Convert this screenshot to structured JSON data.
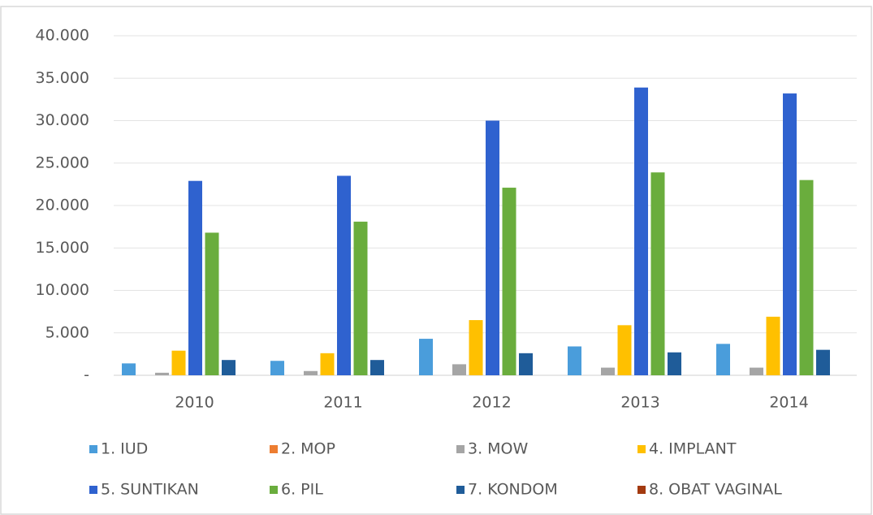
{
  "chart_data": {
    "type": "bar",
    "categories": [
      "2010",
      "2011",
      "2012",
      "2013",
      "2014"
    ],
    "series": [
      {
        "name": "1. IUD",
        "color": "#4a9ddb",
        "values": [
          1400,
          1700,
          4300,
          3400,
          3700
        ]
      },
      {
        "name": "2. MOP",
        "color": "#ed7d31",
        "values": [
          0,
          0,
          0,
          0,
          0
        ]
      },
      {
        "name": "3. MOW",
        "color": "#a5a5a5",
        "values": [
          300,
          500,
          1300,
          900,
          900
        ]
      },
      {
        "name": "4. IMPLANT",
        "color": "#ffc000",
        "values": [
          2900,
          2600,
          6500,
          5900,
          6900
        ]
      },
      {
        "name": "5. SUNTIKAN",
        "color": "#2f62cf",
        "values": [
          22900,
          23500,
          30000,
          33900,
          33200
        ]
      },
      {
        "name": "6. PIL",
        "color": "#6aad3d",
        "values": [
          16800,
          18100,
          22100,
          23900,
          23000
        ]
      },
      {
        "name": "7. KONDOM",
        "color": "#1f5c99",
        "values": [
          1800,
          1800,
          2600,
          2700,
          3000
        ]
      },
      {
        "name": "8. OBAT VAGINAL",
        "color": "#a33a10",
        "values": [
          0,
          0,
          0,
          0,
          0
        ]
      }
    ],
    "ylim": [
      0,
      40000
    ],
    "yticks": [
      {
        "value": 0,
        "label": "-"
      },
      {
        "value": 5000,
        "label": "5.000"
      },
      {
        "value": 10000,
        "label": "10.000"
      },
      {
        "value": 15000,
        "label": "15.000"
      },
      {
        "value": 20000,
        "label": "20.000"
      },
      {
        "value": 25000,
        "label": "25.000"
      },
      {
        "value": 30000,
        "label": "30.000"
      },
      {
        "value": 35000,
        "label": "35.000"
      },
      {
        "value": 40000,
        "label": "40.000"
      }
    ],
    "grid": true
  }
}
